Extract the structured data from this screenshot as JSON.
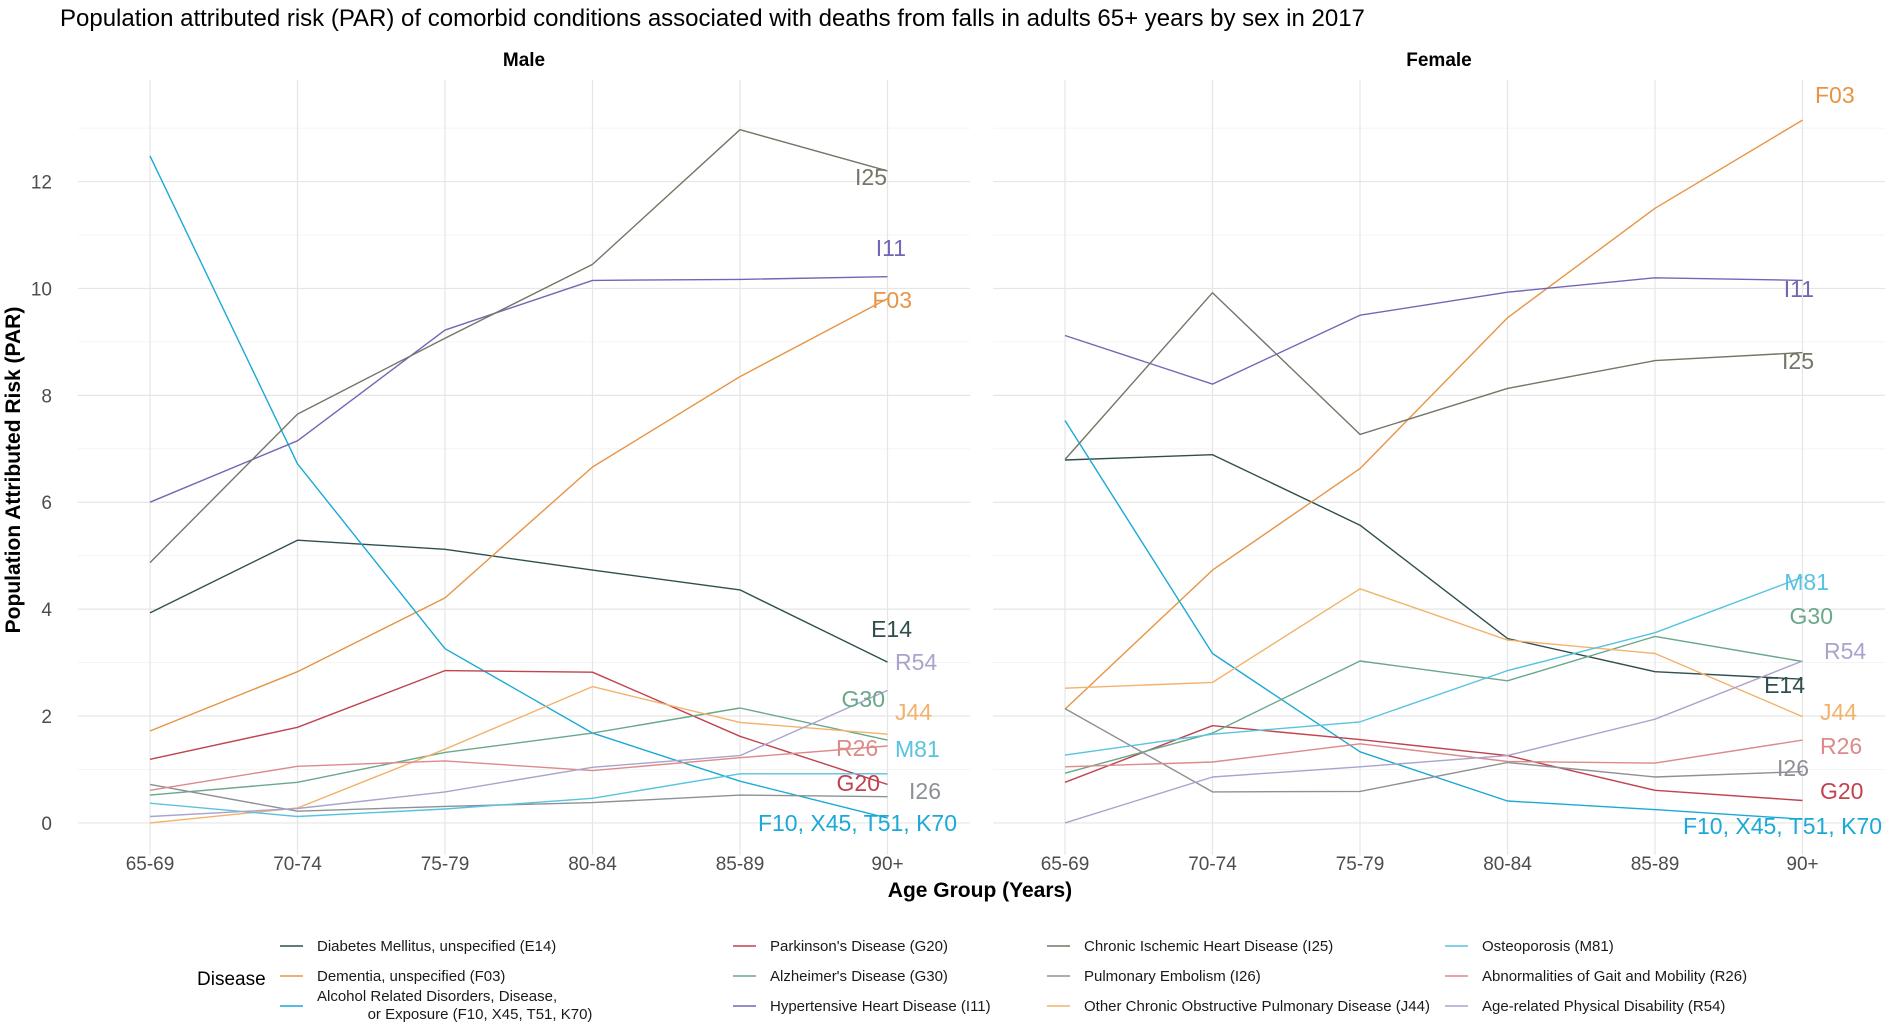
{
  "chart_data": {
    "type": "line",
    "title": "Population attributed risk (PAR) of comorbid conditions associated with deaths from falls in adults 65+ years by sex in 2017",
    "xlabel": "Age Group (Years)",
    "ylabel": "Population Attributed Risk (PAR)",
    "categories": [
      "65-69",
      "70-74",
      "75-79",
      "80-84",
      "85-89",
      "90+"
    ],
    "ylim": [
      -0.6,
      13.9
    ],
    "y_ticks": [
      0,
      2,
      4,
      6,
      8,
      10,
      12
    ],
    "grid": true,
    "legend_title": "Disease",
    "legend_position": "bottom",
    "series_meta": [
      {
        "key": "E14",
        "name": "Diabetes Mellitus, unspecified (E14)",
        "color": "#2f4f4f"
      },
      {
        "key": "F03",
        "name": "Dementia, unspecified (F03)",
        "color": "#e69545"
      },
      {
        "key": "F10",
        "name": "Alcohol Related Disorders, Disease,\nor Exposure  (F10, X45, T51, K70)",
        "color": "#1ba9d6"
      },
      {
        "key": "G20",
        "name": "Parkinson's Disease (G20)",
        "color": "#c0434e"
      },
      {
        "key": "G30",
        "name": "Alzheimer's Disease (G30)",
        "color": "#6aa88a"
      },
      {
        "key": "I11",
        "name": "Hypertensive Heart Disease (I11)",
        "color": "#7466b5"
      },
      {
        "key": "I25",
        "name": "Chronic Ischemic Heart Disease (I25)",
        "color": "#757568"
      },
      {
        "key": "I26",
        "name": "Pulmonary Embolism (I26)",
        "color": "#8d9095"
      },
      {
        "key": "J44",
        "name": "Other Chronic Obstructive Pulmonary Disease (J44)",
        "color": "#f2b26c"
      },
      {
        "key": "M81",
        "name": "Osteoporosis (M81)",
        "color": "#58c3df"
      },
      {
        "key": "R26",
        "name": "Abnormalities of Gait and Mobility (R26)",
        "color": "#dc8a8a"
      },
      {
        "key": "R54",
        "name": "Age-related Physical Disability (R54)",
        "color": "#aaa3cc"
      }
    ],
    "panels": [
      {
        "name": "Male",
        "series": [
          {
            "key": "E14",
            "label": "E14",
            "values": [
              3.93,
              5.29,
              5.12,
              4.73,
              4.36,
              3.01
            ]
          },
          {
            "key": "F03",
            "label": "F03",
            "values": [
              1.72,
              2.83,
              4.21,
              6.66,
              8.35,
              9.81
            ]
          },
          {
            "key": "F10",
            "label": "F10, X45, T51, K70",
            "values": [
              12.48,
              6.72,
              3.26,
              1.68,
              0.78,
              0.09
            ]
          },
          {
            "key": "G20",
            "label": "G20",
            "values": [
              1.19,
              1.79,
              2.85,
              2.82,
              1.62,
              0.72
            ]
          },
          {
            "key": "G30",
            "label": "G30",
            "values": [
              0.52,
              0.76,
              1.32,
              1.68,
              2.15,
              1.55
            ]
          },
          {
            "key": "I11",
            "label": "I11",
            "values": [
              6.0,
              7.15,
              9.22,
              10.15,
              10.17,
              10.22
            ]
          },
          {
            "key": "I25",
            "label": "I25",
            "values": [
              4.87,
              7.65,
              9.07,
              10.45,
              12.97,
              12.2
            ]
          },
          {
            "key": "I26",
            "label": "I26",
            "values": [
              0.72,
              0.22,
              0.31,
              0.38,
              0.52,
              0.49
            ]
          },
          {
            "key": "J44",
            "label": "J44",
            "values": [
              0.0,
              0.28,
              1.38,
              2.55,
              1.88,
              1.66
            ]
          },
          {
            "key": "M81",
            "label": "M81",
            "values": [
              0.37,
              0.12,
              0.26,
              0.46,
              0.92,
              0.92
            ]
          },
          {
            "key": "R26",
            "label": "R26",
            "values": [
              0.61,
              1.06,
              1.16,
              0.98,
              1.22,
              1.44
            ]
          },
          {
            "key": "R54",
            "label": "R54",
            "values": [
              0.12,
              0.27,
              0.58,
              1.04,
              1.26,
              2.48
            ]
          }
        ]
      },
      {
        "name": "Female",
        "series": [
          {
            "key": "E14",
            "label": "E14",
            "values": [
              6.79,
              6.89,
              5.57,
              3.45,
              2.83,
              2.69
            ]
          },
          {
            "key": "F03",
            "label": "F03",
            "values": [
              2.13,
              4.73,
              6.63,
              9.45,
              11.5,
              13.15
            ]
          },
          {
            "key": "F10",
            "label": "F10, X45, T51, K70",
            "values": [
              7.53,
              3.17,
              1.33,
              0.41,
              0.25,
              0.07
            ]
          },
          {
            "key": "G20",
            "label": "G20",
            "values": [
              0.76,
              1.82,
              1.56,
              1.26,
              0.61,
              0.42
            ]
          },
          {
            "key": "G30",
            "label": "G30",
            "values": [
              0.93,
              1.68,
              3.03,
              2.66,
              3.49,
              3.02
            ]
          },
          {
            "key": "I11",
            "label": "I11",
            "values": [
              9.12,
              8.21,
              9.5,
              9.93,
              10.2,
              10.15
            ]
          },
          {
            "key": "I25",
            "label": "I25",
            "values": [
              6.8,
              9.92,
              7.27,
              8.13,
              8.65,
              8.8
            ]
          },
          {
            "key": "I26",
            "label": "I26",
            "values": [
              2.14,
              0.58,
              0.59,
              1.13,
              0.86,
              0.96
            ]
          },
          {
            "key": "J44",
            "label": "J44",
            "values": [
              2.52,
              2.63,
              4.38,
              3.42,
              3.17,
              1.99
            ]
          },
          {
            "key": "M81",
            "label": "M81",
            "values": [
              1.27,
              1.66,
              1.89,
              2.85,
              3.56,
              4.6
            ]
          },
          {
            "key": "R26",
            "label": "R26",
            "values": [
              1.05,
              1.14,
              1.48,
              1.15,
              1.12,
              1.55
            ]
          },
          {
            "key": "R54",
            "label": "R54",
            "values": [
              0.0,
              0.86,
              1.05,
              1.26,
              1.94,
              3.03
            ]
          }
        ]
      }
    ]
  }
}
